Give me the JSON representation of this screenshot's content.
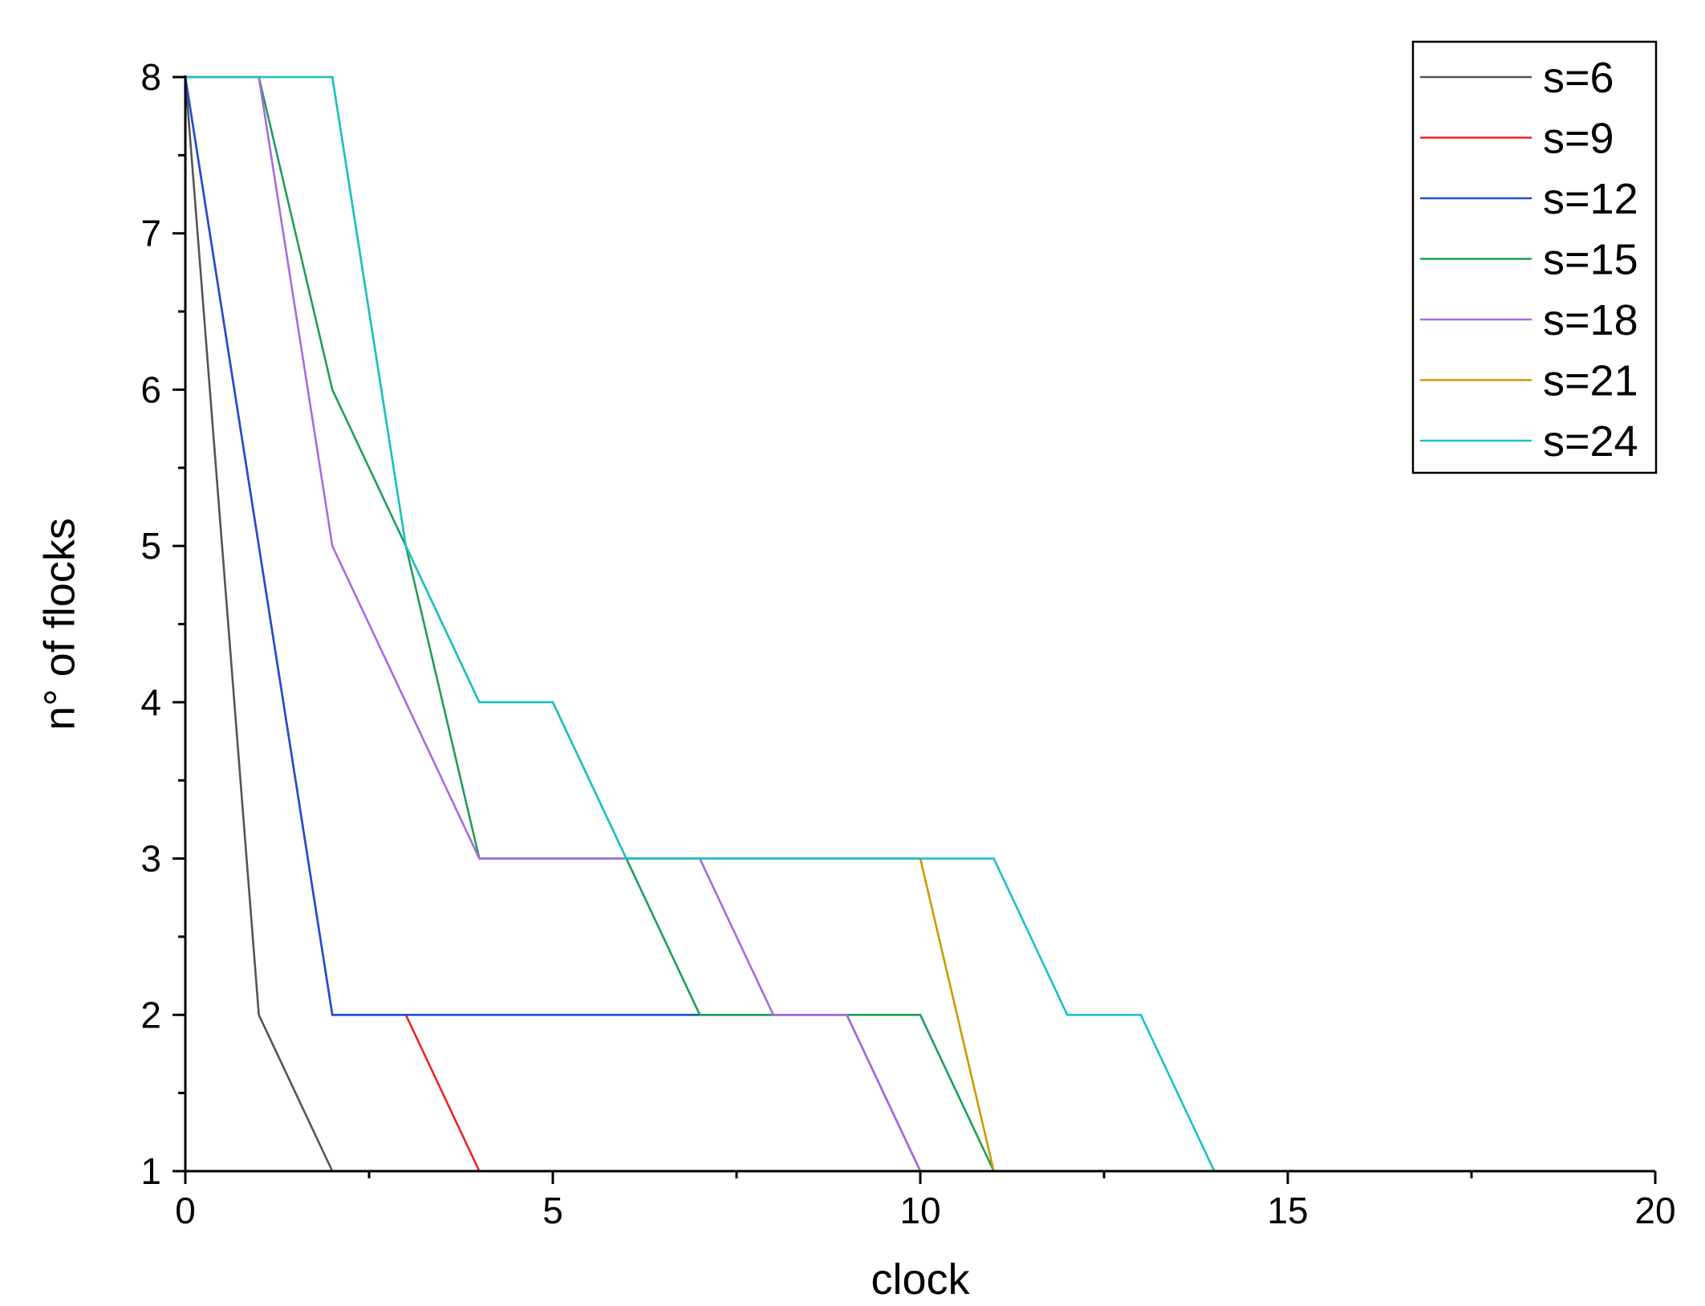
{
  "chart_data": {
    "type": "line",
    "title": "",
    "xlabel": "clock",
    "ylabel": "n° of flocks",
    "xlim": [
      0,
      20
    ],
    "ylim": [
      1,
      8
    ],
    "x_ticks": [
      0,
      5,
      10,
      15,
      20
    ],
    "x_tick_labels": [
      "0",
      "5",
      "10",
      "15",
      "20"
    ],
    "y_ticks": [
      1,
      2,
      3,
      4,
      5,
      6,
      7,
      8
    ],
    "y_tick_labels": [
      "1",
      "2",
      "3",
      "4",
      "5",
      "6",
      "7",
      "8"
    ],
    "grid": false,
    "legend_position": "top-right",
    "x": [
      0,
      1,
      2,
      3,
      4,
      5,
      6,
      7,
      8,
      9,
      10,
      11,
      12,
      13,
      14,
      15,
      16,
      17,
      18,
      19,
      20
    ],
    "series": [
      {
        "name": "s=6",
        "color": "#555555",
        "values": [
          8,
          2,
          1,
          1,
          1,
          1,
          1,
          1,
          1,
          1,
          1,
          1,
          1,
          1,
          1,
          1,
          1,
          1,
          1,
          1,
          1
        ]
      },
      {
        "name": "s=9",
        "color": "#ee2222",
        "values": [
          8,
          5,
          2,
          2,
          1,
          1,
          1,
          1,
          1,
          1,
          1,
          1,
          1,
          1,
          1,
          1,
          1,
          1,
          1,
          1,
          1
        ]
      },
      {
        "name": "s=12",
        "color": "#1f4fd6",
        "values": [
          8,
          5,
          2,
          2,
          2,
          2,
          2,
          2,
          2,
          2,
          1,
          1,
          1,
          1,
          1,
          1,
          1,
          1,
          1,
          1,
          1
        ]
      },
      {
        "name": "s=15",
        "color": "#1e9e5a",
        "values": [
          8,
          8,
          6,
          5,
          3,
          3,
          3,
          2,
          2,
          2,
          2,
          1,
          1,
          1,
          1,
          1,
          1,
          1,
          1,
          1,
          1
        ]
      },
      {
        "name": "s=18",
        "color": "#a86ae0",
        "values": [
          8,
          8,
          5,
          4,
          3,
          3,
          3,
          3,
          2,
          2,
          1,
          1,
          1,
          1,
          1,
          1,
          1,
          1,
          1,
          1,
          1
        ]
      },
      {
        "name": "s=21",
        "color": "#cc9900",
        "values": [
          8,
          8,
          8,
          5,
          4,
          4,
          3,
          3,
          3,
          3,
          3,
          1,
          1,
          1,
          1,
          1,
          1,
          1,
          1,
          1,
          1
        ]
      },
      {
        "name": "s=24",
        "color": "#17c3c9",
        "values": [
          8,
          8,
          8,
          5,
          4,
          4,
          3,
          3,
          3,
          3,
          3,
          3,
          2,
          2,
          1,
          1,
          1,
          1,
          1,
          1,
          1
        ]
      }
    ]
  }
}
